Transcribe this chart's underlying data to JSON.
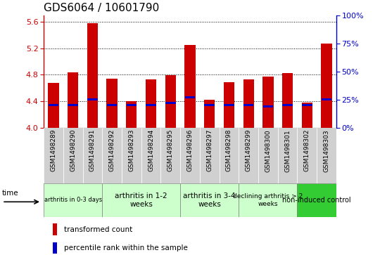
{
  "title": "GDS6064 / 10601790",
  "samples": [
    "GSM1498289",
    "GSM1498290",
    "GSM1498291",
    "GSM1498292",
    "GSM1498293",
    "GSM1498294",
    "GSM1498295",
    "GSM1498296",
    "GSM1498297",
    "GSM1498298",
    "GSM1498299",
    "GSM1498300",
    "GSM1498301",
    "GSM1498302",
    "GSM1498303"
  ],
  "transformed_count": [
    4.68,
    4.84,
    5.58,
    4.74,
    4.4,
    4.73,
    4.79,
    5.25,
    4.42,
    4.69,
    4.73,
    4.77,
    4.82,
    4.38,
    5.27
  ],
  "percentile_rank": [
    20,
    20,
    25,
    20,
    20,
    20,
    22,
    27,
    20,
    20,
    20,
    19,
    20,
    20,
    25
  ],
  "ylim_left": [
    4.0,
    5.7
  ],
  "ylim_right": [
    0,
    100
  ],
  "yticks_left": [
    4.0,
    4.4,
    4.8,
    5.2,
    5.6
  ],
  "yticks_right": [
    0,
    25,
    50,
    75,
    100
  ],
  "bar_color": "#cc0000",
  "percentile_color": "#0000cc",
  "bar_width": 0.55,
  "groups": [
    {
      "label": "arthritis in 0-3 days",
      "indices": [
        0,
        1,
        2
      ],
      "color": "#ccffcc",
      "fontsize": 6.0
    },
    {
      "label": "arthritis in 1-2\nweeks",
      "indices": [
        3,
        4,
        5,
        6
      ],
      "color": "#ccffcc",
      "fontsize": 7.5
    },
    {
      "label": "arthritis in 3-4\nweeks",
      "indices": [
        7,
        8,
        9
      ],
      "color": "#ccffcc",
      "fontsize": 7.5
    },
    {
      "label": "declining arthritis > 2\nweeks",
      "indices": [
        10,
        11,
        12
      ],
      "color": "#ccffcc",
      "fontsize": 6.5
    },
    {
      "label": "non-induced control",
      "indices": [
        13,
        14
      ],
      "color": "#33cc33",
      "fontsize": 7.0
    }
  ],
  "legend_transformed": "transformed count",
  "legend_percentile": "percentile rank within the sample",
  "base_value": 4.0,
  "tick_fontsize": 8,
  "title_fontsize": 11,
  "sample_fontsize": 6.5,
  "gray_box_color": "#d0d0d0",
  "left_spine_color": "#cc0000",
  "right_spine_color": "#0000cc"
}
